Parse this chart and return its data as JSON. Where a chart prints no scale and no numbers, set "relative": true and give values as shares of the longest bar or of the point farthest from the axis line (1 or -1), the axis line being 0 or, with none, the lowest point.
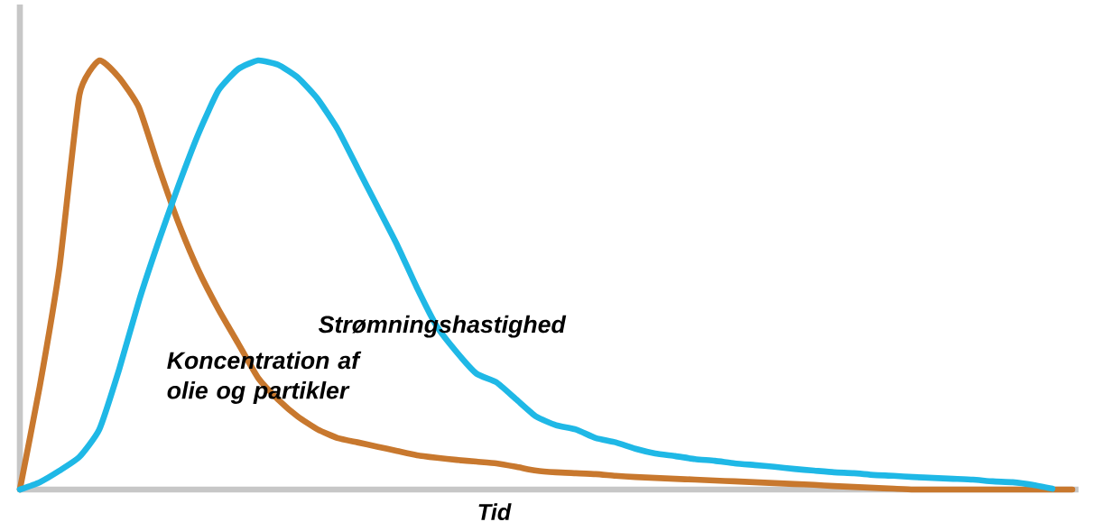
{
  "chart_data": {
    "type": "line",
    "relative": true,
    "xlabel": "Tid",
    "categories": [
      null,
      null,
      null,
      null,
      null,
      null,
      null,
      null,
      null,
      null,
      null,
      null,
      null,
      null,
      null,
      null,
      null,
      null,
      null,
      null,
      null,
      null,
      null,
      null,
      null,
      null,
      null,
      null,
      null,
      null,
      null,
      null,
      null,
      null,
      null,
      null,
      null,
      null,
      null,
      null,
      null,
      null,
      null,
      null,
      null,
      null,
      null,
      null,
      null,
      null,
      null,
      null,
      null,
      null
    ],
    "series": [
      {
        "name": "Koncentration af olie og partikler",
        "color": "#c8782e",
        "values": [
          0,
          0.24,
          0.52,
          0.92,
          1,
          0.96,
          0.89,
          0.75,
          0.62,
          0.51,
          0.42,
          0.34,
          0.26,
          0.21,
          0.17,
          0.14,
          0.12,
          0.11,
          0.1,
          0.09,
          0.08,
          0.074,
          0.069,
          0.065,
          0.061,
          0.053,
          0.044,
          0.04,
          0.038,
          0.036,
          0.032,
          0.029,
          0.027,
          0.025,
          0.023,
          0.021,
          0.019,
          0.017,
          0.015,
          0.013,
          0.011,
          0.008,
          0.006,
          0.004,
          0.002,
          0,
          0,
          0,
          0,
          0,
          0,
          0,
          0,
          0
        ]
      },
      {
        "name": "Strømningshastighed",
        "color": "#1fb8e6",
        "values": [
          0,
          0.017,
          0.044,
          0.076,
          0.14,
          0.28,
          0.44,
          0.58,
          0.71,
          0.83,
          0.93,
          0.98,
          1.0,
          0.99,
          0.96,
          0.91,
          0.84,
          0.75,
          0.66,
          0.57,
          0.47,
          0.38,
          0.32,
          0.27,
          0.25,
          0.21,
          0.17,
          0.15,
          0.14,
          0.12,
          0.11,
          0.095,
          0.084,
          0.078,
          0.071,
          0.067,
          0.061,
          0.057,
          0.053,
          0.048,
          0.044,
          0.04,
          0.038,
          0.034,
          0.032,
          0.029,
          0.027,
          0.025,
          0.023,
          0.019,
          0.017,
          0.011,
          0.002,
          null
        ]
      }
    ]
  }
}
